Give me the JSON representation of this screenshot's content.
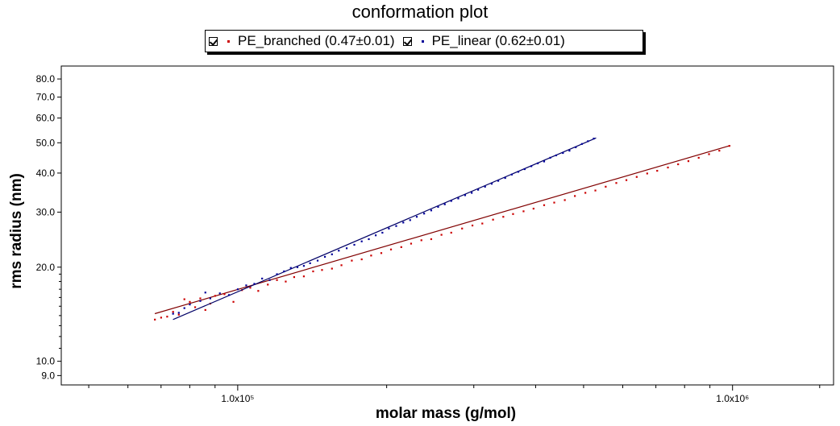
{
  "chart_data": {
    "type": "scatter",
    "title": "conformation plot",
    "xlabel": "molar mass (g/mol)",
    "ylabel": "rms radius (nm)",
    "x_scale": "log",
    "y_scale": "log",
    "xlim": [
      44000,
      1600000
    ],
    "ylim": [
      8.4,
      88
    ],
    "x_ticks": [
      {
        "value": 100000,
        "label": "1.0x10⁵"
      },
      {
        "value": 1000000,
        "label": "1.0x10⁶"
      }
    ],
    "y_ticks": [
      {
        "value": 9,
        "label": "9.0"
      },
      {
        "value": 10,
        "label": "10.0"
      },
      {
        "value": 20,
        "label": "20.0"
      },
      {
        "value": 30,
        "label": "30.0"
      },
      {
        "value": 40,
        "label": "40.0"
      },
      {
        "value": 50,
        "label": "50.0"
      },
      {
        "value": 60,
        "label": "60.0"
      },
      {
        "value": 70,
        "label": "70.0"
      },
      {
        "value": 80,
        "label": "80.0"
      }
    ],
    "grid": false,
    "legend_position": "top-center",
    "series": [
      {
        "name": "PE_branched (0.47±0.01)",
        "color": "#cc0000",
        "line_color": "#800000",
        "fit": {
          "x": [
            68000,
            990000
          ],
          "y": [
            14.2,
            49.0
          ]
        },
        "points": [
          [
            68000,
            13.6
          ],
          [
            70000,
            13.8
          ],
          [
            72000,
            13.9
          ],
          [
            74000,
            14.4
          ],
          [
            76000,
            14.1
          ],
          [
            78000,
            15.8
          ],
          [
            80000,
            15.5
          ],
          [
            82000,
            14.9
          ],
          [
            84000,
            15.9
          ],
          [
            86000,
            14.6
          ],
          [
            88000,
            15.3
          ],
          [
            90000,
            16.2
          ],
          [
            94000,
            16.4
          ],
          [
            98000,
            15.5
          ],
          [
            102000,
            16.9
          ],
          [
            106000,
            17.2
          ],
          [
            110000,
            16.8
          ],
          [
            115000,
            17.6
          ],
          [
            120000,
            18.2
          ],
          [
            125000,
            18.0
          ],
          [
            130000,
            18.6
          ],
          [
            136000,
            18.7
          ],
          [
            142000,
            19.4
          ],
          [
            148000,
            19.6
          ],
          [
            155000,
            19.8
          ],
          [
            162000,
            20.3
          ],
          [
            170000,
            21.0
          ],
          [
            178000,
            21.2
          ],
          [
            186000,
            21.8
          ],
          [
            195000,
            22.2
          ],
          [
            204000,
            22.8
          ],
          [
            214000,
            23.2
          ],
          [
            224000,
            23.8
          ],
          [
            235000,
            24.4
          ],
          [
            246000,
            24.6
          ],
          [
            258000,
            25.4
          ],
          [
            270000,
            25.8
          ],
          [
            284000,
            26.6
          ],
          [
            298000,
            27.2
          ],
          [
            312000,
            27.6
          ],
          [
            328000,
            28.4
          ],
          [
            344000,
            29.0
          ],
          [
            360000,
            29.6
          ],
          [
            378000,
            30.2
          ],
          [
            396000,
            30.8
          ],
          [
            416000,
            31.6
          ],
          [
            436000,
            32.2
          ],
          [
            458000,
            32.8
          ],
          [
            480000,
            33.8
          ],
          [
            504000,
            34.6
          ],
          [
            528000,
            35.2
          ],
          [
            554000,
            36.2
          ],
          [
            582000,
            37.2
          ],
          [
            610000,
            38.0
          ],
          [
            640000,
            38.9
          ],
          [
            672000,
            39.9
          ],
          [
            704000,
            40.7
          ],
          [
            740000,
            41.7
          ],
          [
            776000,
            42.7
          ],
          [
            814000,
            43.7
          ],
          [
            854000,
            44.8
          ],
          [
            896000,
            46.0
          ],
          [
            940000,
            47.2
          ],
          [
            985000,
            48.9
          ]
        ]
      },
      {
        "name": "PE_linear (0.62±0.01)",
        "color": "#000099",
        "line_color": "#000066",
        "fit": {
          "x": [
            74000,
            530000
          ],
          "y": [
            13.6,
            51.8
          ]
        },
        "points": [
          [
            74000,
            14.2
          ],
          [
            76000,
            14.3
          ],
          [
            78000,
            14.8
          ],
          [
            80000,
            15.2
          ],
          [
            84000,
            15.6
          ],
          [
            86000,
            16.6
          ],
          [
            88000,
            15.9
          ],
          [
            92000,
            16.5
          ],
          [
            96000,
            16.3
          ],
          [
            100000,
            17.0
          ],
          [
            104000,
            17.5
          ],
          [
            108000,
            17.7
          ],
          [
            112000,
            18.4
          ],
          [
            116000,
            18.2
          ],
          [
            120000,
            19.0
          ],
          [
            124000,
            19.4
          ],
          [
            128000,
            19.9
          ],
          [
            132000,
            20.0
          ],
          [
            136000,
            20.2
          ],
          [
            140000,
            20.6
          ],
          [
            145000,
            21.0
          ],
          [
            150000,
            21.6
          ],
          [
            155000,
            22.0
          ],
          [
            160000,
            22.6
          ],
          [
            166000,
            23.0
          ],
          [
            172000,
            23.6
          ],
          [
            178000,
            24.2
          ],
          [
            184000,
            24.6
          ],
          [
            190000,
            25.3
          ],
          [
            196000,
            25.8
          ],
          [
            202000,
            26.6
          ],
          [
            209000,
            27.1
          ],
          [
            216000,
            27.8
          ],
          [
            223000,
            28.3
          ],
          [
            230000,
            29.0
          ],
          [
            238000,
            29.7
          ],
          [
            246000,
            30.4
          ],
          [
            254000,
            31.2
          ],
          [
            262000,
            31.8
          ],
          [
            270000,
            32.6
          ],
          [
            279000,
            33.2
          ],
          [
            288000,
            34.0
          ],
          [
            297000,
            34.6
          ],
          [
            306000,
            35.4
          ],
          [
            316000,
            36.2
          ],
          [
            326000,
            37.0
          ],
          [
            336000,
            37.8
          ],
          [
            347000,
            38.6
          ],
          [
            358000,
            39.6
          ],
          [
            369000,
            40.4
          ],
          [
            380000,
            41.2
          ],
          [
            392000,
            42.1
          ],
          [
            404000,
            43.0
          ],
          [
            416000,
            43.6
          ],
          [
            428000,
            44.8
          ],
          [
            440000,
            45.6
          ],
          [
            454000,
            46.4
          ],
          [
            468000,
            47.2
          ],
          [
            482000,
            48.4
          ],
          [
            496000,
            49.6
          ],
          [
            510000,
            50.6
          ],
          [
            524000,
            51.6
          ]
        ]
      }
    ]
  }
}
